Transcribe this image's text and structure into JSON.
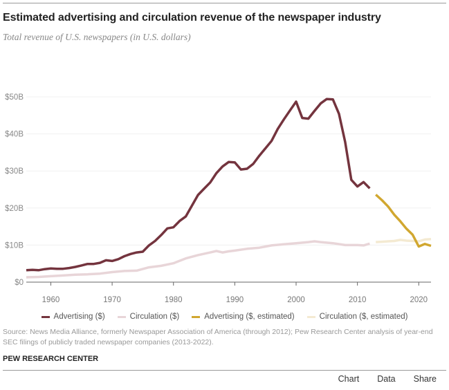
{
  "header": {
    "title": "Estimated advertising and circulation revenue of the newspaper industry",
    "subtitle": "Total revenue of U.S. newspapers (in U.S. dollars)"
  },
  "chart_data": {
    "type": "line",
    "title": "Estimated advertising and circulation revenue of the newspaper industry",
    "subtitle": "Total revenue of U.S. newspapers (in U.S. dollars)",
    "xlabel": "",
    "ylabel": "",
    "xlim": [
      1956,
      2022
    ],
    "ylim": [
      0,
      50
    ],
    "grid": true,
    "legend_position": "bottom",
    "y_ticks": [
      {
        "value": 0,
        "label": "$0"
      },
      {
        "value": 10,
        "label": "$10B"
      },
      {
        "value": 20,
        "label": "$20B"
      },
      {
        "value": 30,
        "label": "$30B"
      },
      {
        "value": 40,
        "label": "$40B"
      },
      {
        "value": 50,
        "label": "$50B"
      }
    ],
    "x_ticks": [
      {
        "value": 1960,
        "label": "1960"
      },
      {
        "value": 1970,
        "label": "1970"
      },
      {
        "value": 1980,
        "label": "1980"
      },
      {
        "value": 1990,
        "label": "1990"
      },
      {
        "value": 2000,
        "label": "2000"
      },
      {
        "value": 2010,
        "label": "2010"
      },
      {
        "value": 2020,
        "label": "2020"
      }
    ],
    "series": [
      {
        "name": "Advertising ($)",
        "color": "#74343e",
        "x": [
          1956,
          1957,
          1958,
          1959,
          1960,
          1961,
          1962,
          1963,
          1964,
          1965,
          1966,
          1967,
          1968,
          1969,
          1970,
          1971,
          1972,
          1973,
          1974,
          1975,
          1976,
          1977,
          1978,
          1979,
          1980,
          1981,
          1982,
          1983,
          1984,
          1985,
          1986,
          1987,
          1988,
          1989,
          1990,
          1991,
          1992,
          1993,
          1994,
          1995,
          1996,
          1997,
          1998,
          1999,
          2000,
          2001,
          2002,
          2003,
          2004,
          2005,
          2006,
          2007,
          2008,
          2009,
          2010,
          2011,
          2012
        ],
        "values": [
          3.2,
          3.3,
          3.2,
          3.5,
          3.7,
          3.6,
          3.6,
          3.8,
          4.1,
          4.5,
          4.9,
          4.9,
          5.2,
          5.9,
          5.7,
          6.2,
          7.0,
          7.6,
          8.0,
          8.2,
          9.9,
          11.1,
          12.7,
          14.5,
          14.8,
          16.5,
          17.7,
          20.6,
          23.5,
          25.2,
          26.9,
          29.4,
          31.2,
          32.4,
          32.3,
          30.4,
          30.6,
          31.9,
          34.1,
          36.1,
          38.1,
          41.3,
          43.9,
          46.3,
          48.7,
          44.3,
          44.1,
          46.2,
          48.2,
          49.4,
          49.3,
          45.4,
          37.8,
          27.6,
          25.8,
          27.0,
          25.3
        ]
      },
      {
        "name": "Circulation ($)",
        "color": "#e8d5d8",
        "x": [
          1956,
          1958,
          1960,
          1962,
          1964,
          1966,
          1968,
          1970,
          1972,
          1974,
          1976,
          1978,
          1980,
          1982,
          1984,
          1986,
          1987,
          1988,
          1989,
          1990,
          1992,
          1994,
          1996,
          1998,
          2000,
          2002,
          2003,
          2004,
          2006,
          2008,
          2010,
          2011,
          2012
        ],
        "values": [
          1.3,
          1.4,
          1.6,
          1.8,
          2.0,
          2.1,
          2.3,
          2.7,
          3.0,
          3.1,
          4.0,
          4.4,
          5.1,
          6.4,
          7.3,
          8.0,
          8.4,
          8.0,
          8.3,
          8.5,
          9.0,
          9.3,
          9.9,
          10.2,
          10.5,
          10.8,
          11.0,
          10.8,
          10.5,
          10.0,
          10.0,
          9.9,
          10.4
        ]
      },
      {
        "name": "Advertising ($, estimated)",
        "color": "#d1a730",
        "x": [
          2013,
          2014,
          2015,
          2016,
          2017,
          2018,
          2019,
          2020,
          2021,
          2022
        ],
        "values": [
          23.6,
          22.1,
          20.4,
          18.2,
          16.4,
          14.4,
          12.8,
          9.6,
          10.3,
          9.8
        ]
      },
      {
        "name": "Circulation ($, estimated)",
        "color": "#f4ead2",
        "x": [
          2013,
          2014,
          2015,
          2016,
          2017,
          2018,
          2019,
          2020,
          2021,
          2022
        ],
        "values": [
          10.8,
          10.9,
          11.0,
          11.1,
          11.4,
          11.2,
          11.1,
          11.0,
          11.5,
          11.6
        ]
      }
    ]
  },
  "legend": [
    {
      "label": "Advertising ($)",
      "color": "#74343e"
    },
    {
      "label": "Circulation ($)",
      "color": "#e8d5d8"
    },
    {
      "label": "Advertising ($, estimated)",
      "color": "#d1a730"
    },
    {
      "label": "Circulation ($, estimated)",
      "color": "#f4ead2"
    }
  ],
  "footer": {
    "source": "Source: News Media Alliance, formerly Newspaper Association of America (through 2012); Pew Research Center analysis of year-end SEC filings of publicly traded newspaper companies (2013-2022).",
    "brand": "PEW RESEARCH CENTER"
  },
  "tabs": [
    {
      "label": "Chart"
    },
    {
      "label": "Data"
    },
    {
      "label": "Share"
    }
  ]
}
